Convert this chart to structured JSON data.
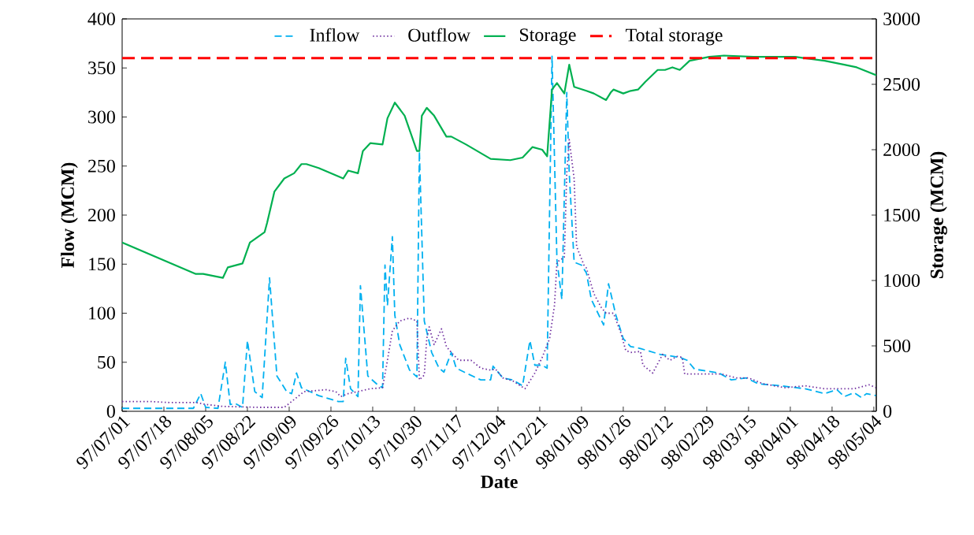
{
  "chart_data": {
    "type": "line",
    "xlabel": "Date",
    "ylabel": "Flow (MCM)",
    "y2label": "Storage (MCM)",
    "xlim": [
      "2018-09-23",
      "2019-07-27"
    ],
    "ylim": [
      0,
      400
    ],
    "y2lim": [
      0,
      3000
    ],
    "xticks": [
      {
        "value": "2018-09-23",
        "label": "97/07/01"
      },
      {
        "value": "2018-10-10",
        "label": "97/07/18"
      },
      {
        "value": "2018-10-27",
        "label": "97/08/05"
      },
      {
        "value": "2018-11-13",
        "label": "97/08/22"
      },
      {
        "value": "2018-11-30",
        "label": "97/09/09"
      },
      {
        "value": "2018-12-17",
        "label": "97/09/26"
      },
      {
        "value": "2019-01-03",
        "label": "97/10/13"
      },
      {
        "value": "2019-01-20",
        "label": "97/10/30"
      },
      {
        "value": "2019-02-06",
        "label": "97/11/17"
      },
      {
        "value": "2019-02-23",
        "label": "97/12/04"
      },
      {
        "value": "2019-03-12",
        "label": "97/12/21"
      },
      {
        "value": "2019-03-29",
        "label": "98/01/09"
      },
      {
        "value": "2019-04-15",
        "label": "98/01/26"
      },
      {
        "value": "2019-05-02",
        "label": "98/02/12"
      },
      {
        "value": "2019-05-19",
        "label": "98/02/29"
      },
      {
        "value": "2019-06-05",
        "label": "98/03/15"
      },
      {
        "value": "2019-06-22",
        "label": "98/04/01"
      },
      {
        "value": "2019-07-09",
        "label": "98/04/18"
      },
      {
        "value": "2019-07-26",
        "label": "98/05/04"
      }
    ],
    "yticks": [
      0,
      50,
      100,
      150,
      200,
      250,
      300,
      350,
      400
    ],
    "y2ticks": [
      0,
      500,
      1000,
      1500,
      2000,
      2500,
      3000
    ],
    "legend": "top",
    "grid": false,
    "marker": "none",
    "series": [
      {
        "name": "Inflow",
        "color": "#00b0f0",
        "line_style": "dashed",
        "x": [
          "2018-09-23",
          "2018-10-22",
          "2018-10-25",
          "2018-10-27",
          "2018-11-01",
          "2018-11-04",
          "2018-11-06",
          "2018-11-08",
          "2018-11-11",
          "2018-11-13",
          "2018-11-16",
          "2018-11-19",
          "2018-11-22",
          "2018-11-25",
          "2018-11-29",
          "2018-12-01",
          "2018-12-03",
          "2018-12-05",
          "2018-12-12",
          "2018-12-20",
          "2018-12-22",
          "2018-12-23",
          "2018-12-25",
          "2018-12-28",
          "2018-12-29",
          "2019-01-01",
          "2019-01-05",
          "2019-01-07",
          "2019-01-08",
          "2019-01-09",
          "2019-01-11",
          "2019-01-12",
          "2019-01-14",
          "2019-01-18",
          "2019-01-21",
          "2019-01-22",
          "2019-01-24",
          "2019-01-27",
          "2019-01-30",
          "2019-02-01",
          "2019-02-04",
          "2019-02-06",
          "2019-02-10",
          "2019-02-16",
          "2019-02-20",
          "2019-02-21",
          "2019-02-25",
          "2019-03-01",
          "2019-03-05",
          "2019-03-08",
          "2019-03-10",
          "2019-03-13",
          "2019-03-15",
          "2019-03-17",
          "2019-03-19",
          "2019-03-21",
          "2019-03-23",
          "2019-03-24",
          "2019-03-26",
          "2019-03-29",
          "2019-03-31",
          "2019-04-02",
          "2019-04-07",
          "2019-04-09",
          "2019-04-12",
          "2019-04-15",
          "2019-04-18",
          "2019-04-22",
          "2019-04-30",
          "2019-05-08",
          "2019-05-11",
          "2019-05-14",
          "2019-05-24",
          "2019-05-29",
          "2019-06-04",
          "2019-06-09",
          "2019-06-18",
          "2019-06-28",
          "2019-07-06",
          "2019-07-11",
          "2019-07-14",
          "2019-07-18",
          "2019-07-21",
          "2019-07-23",
          "2019-07-27"
        ],
        "values": [
          3,
          3,
          18,
          4,
          3,
          50,
          7,
          8,
          4,
          72,
          20,
          14,
          136,
          36,
          20,
          18,
          39,
          24,
          16,
          10,
          10,
          54,
          23,
          15,
          128,
          36,
          27,
          24,
          149,
          108,
          178,
          98,
          68,
          42,
          35,
          265,
          92,
          60,
          44,
          40,
          60,
          44,
          39,
          32,
          32,
          46,
          34,
          32,
          26,
          72,
          47,
          47,
          44,
          362,
          154,
          114,
          325,
          243,
          152,
          149,
          141,
          114,
          88,
          130,
          98,
          74,
          66,
          64,
          58,
          55,
          52,
          43,
          39,
          32,
          34,
          28,
          26,
          23,
          18,
          22,
          15,
          19,
          14,
          18,
          16
        ]
      },
      {
        "name": "Outflow",
        "color": "#7030a0",
        "line_style": "dotted",
        "x": [
          "2018-09-23",
          "2018-10-04",
          "2018-10-12",
          "2018-10-23",
          "2018-10-27",
          "2018-11-03",
          "2018-11-18",
          "2018-11-28",
          "2018-12-01",
          "2018-12-06",
          "2018-12-15",
          "2018-12-19",
          "2018-12-21",
          "2018-12-24",
          "2019-01-02",
          "2019-01-07",
          "2019-01-09",
          "2019-01-11",
          "2019-01-14",
          "2019-01-18",
          "2019-01-21",
          "2019-01-22",
          "2019-01-24",
          "2019-01-25",
          "2019-01-26",
          "2019-01-28",
          "2019-01-31",
          "2019-02-02",
          "2019-02-04",
          "2019-02-07",
          "2019-02-12",
          "2019-02-16",
          "2019-02-20",
          "2019-02-22",
          "2019-02-25",
          "2019-03-01",
          "2019-03-06",
          "2019-03-10",
          "2019-03-13",
          "2019-03-16",
          "2019-03-18",
          "2019-03-19",
          "2019-03-22",
          "2019-03-23",
          "2019-03-24",
          "2019-03-26",
          "2019-03-27",
          "2019-03-30",
          "2019-03-31",
          "2019-04-03",
          "2019-04-06",
          "2019-04-08",
          "2019-04-11",
          "2019-04-14",
          "2019-04-16",
          "2019-04-18",
          "2019-04-22",
          "2019-04-23",
          "2019-04-27",
          "2019-05-01",
          "2019-05-04",
          "2019-05-07",
          "2019-05-09",
          "2019-05-10",
          "2019-05-17",
          "2019-05-25",
          "2019-05-31",
          "2019-06-05",
          "2019-06-11",
          "2019-06-20",
          "2019-06-28",
          "2019-07-06",
          "2019-07-18",
          "2019-07-24",
          "2019-07-27"
        ],
        "values": [
          10,
          10,
          9,
          9,
          7,
          5,
          4,
          4,
          10,
          20,
          22,
          20,
          15,
          18,
          23,
          24,
          52,
          82,
          92,
          95,
          92,
          32,
          37,
          74,
          86,
          68,
          84,
          66,
          60,
          52,
          52,
          44,
          42,
          43,
          34,
          31,
          23,
          39,
          55,
          74,
          108,
          152,
          157,
          243,
          277,
          237,
          168,
          149,
          146,
          120,
          106,
          100,
          100,
          80,
          62,
          60,
          61,
          47,
          39,
          58,
          52,
          56,
          55,
          38,
          38,
          38,
          34,
          34,
          28,
          24,
          26,
          23,
          23,
          27,
          24
        ]
      },
      {
        "name": "Storage",
        "color": "#00b050",
        "line_style": "solid",
        "axis": "y2",
        "x": [
          "2018-09-23",
          "2018-10-23",
          "2018-10-26",
          "2018-11-03",
          "2018-11-05",
          "2018-11-11",
          "2018-11-14",
          "2018-11-20",
          "2018-11-21",
          "2018-11-24",
          "2018-11-28",
          "2018-12-02",
          "2018-12-05",
          "2018-12-07",
          "2018-12-12",
          "2018-12-22",
          "2018-12-24",
          "2018-12-28",
          "2018-12-30",
          "2019-01-02",
          "2019-01-07",
          "2019-01-09",
          "2019-01-12",
          "2019-01-16",
          "2019-01-21",
          "2019-01-22",
          "2019-01-23",
          "2019-01-25",
          "2019-01-28",
          "2019-02-02",
          "2019-02-04",
          "2019-02-10",
          "2019-02-20",
          "2019-02-28",
          "2019-03-05",
          "2019-03-09",
          "2019-03-13",
          "2019-03-15",
          "2019-03-17",
          "2019-03-19",
          "2019-03-22",
          "2019-03-24",
          "2019-03-26",
          "2019-03-31",
          "2019-04-03",
          "2019-04-08",
          "2019-04-10",
          "2019-04-11",
          "2019-04-15",
          "2019-04-18",
          "2019-04-21",
          "2019-04-24",
          "2019-04-29",
          "2019-05-02",
          "2019-05-05",
          "2019-05-08",
          "2019-05-12",
          "2019-05-20",
          "2019-05-26",
          "2019-06-07",
          "2019-06-24",
          "2019-07-06",
          "2019-07-14",
          "2019-07-19",
          "2019-07-27"
        ],
        "values": [
          1290,
          1050,
          1050,
          1020,
          1100,
          1130,
          1290,
          1370,
          1440,
          1680,
          1780,
          1820,
          1890,
          1890,
          1860,
          1780,
          1840,
          1820,
          1990,
          2050,
          2040,
          2240,
          2360,
          2260,
          1990,
          1990,
          2260,
          2320,
          2260,
          2100,
          2100,
          2040,
          1930,
          1920,
          1940,
          2020,
          2000,
          1950,
          2460,
          2510,
          2430,
          2650,
          2480,
          2450,
          2430,
          2380,
          2440,
          2460,
          2430,
          2450,
          2460,
          2520,
          2610,
          2610,
          2630,
          2610,
          2680,
          2710,
          2720,
          2710,
          2710,
          2680,
          2650,
          2630,
          2570
        ]
      },
      {
        "name": "Total storage",
        "color": "#ff0000",
        "line_style": "dashed",
        "axis": "y2",
        "x": [
          "2018-09-23",
          "2019-07-27"
        ],
        "values": [
          2700,
          2700
        ]
      }
    ]
  }
}
